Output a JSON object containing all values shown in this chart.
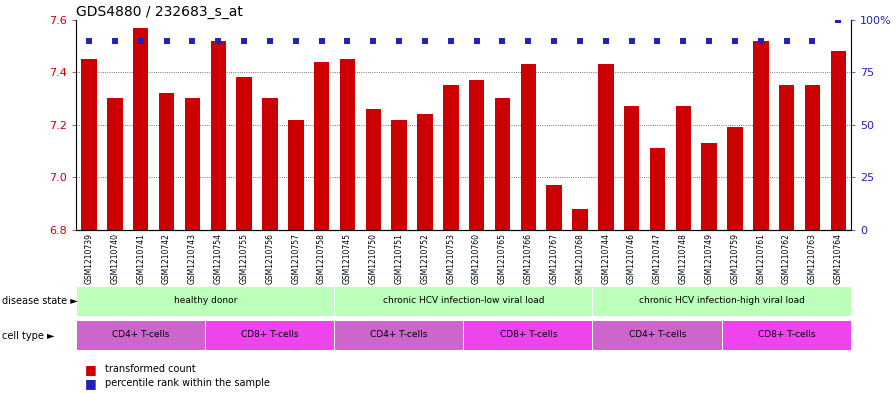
{
  "title": "GDS4880 / 232683_s_at",
  "samples": [
    "GSM1210739",
    "GSM1210740",
    "GSM1210741",
    "GSM1210742",
    "GSM1210743",
    "GSM1210754",
    "GSM1210755",
    "GSM1210756",
    "GSM1210757",
    "GSM1210758",
    "GSM1210745",
    "GSM1210750",
    "GSM1210751",
    "GSM1210752",
    "GSM1210753",
    "GSM1210760",
    "GSM1210765",
    "GSM1210766",
    "GSM1210767",
    "GSM1210768",
    "GSM1210744",
    "GSM1210746",
    "GSM1210747",
    "GSM1210748",
    "GSM1210749",
    "GSM1210759",
    "GSM1210761",
    "GSM1210762",
    "GSM1210763",
    "GSM1210764"
  ],
  "bar_values": [
    7.45,
    7.3,
    7.57,
    7.32,
    7.3,
    7.52,
    7.38,
    7.3,
    7.22,
    7.44,
    7.45,
    7.26,
    7.22,
    7.24,
    7.35,
    7.37,
    7.3,
    7.43,
    6.97,
    6.88,
    7.43,
    7.27,
    7.11,
    7.27,
    7.13,
    7.19,
    7.52,
    7.35,
    7.35,
    7.48
  ],
  "percentile_values": [
    90,
    90,
    90,
    90,
    90,
    90,
    90,
    90,
    90,
    90,
    90,
    90,
    90,
    90,
    90,
    90,
    90,
    90,
    90,
    90,
    90,
    90,
    90,
    90,
    90,
    90,
    90,
    90,
    90,
    100
  ],
  "bar_color": "#cc0000",
  "percentile_color": "#2222bb",
  "ymin": 6.8,
  "ymax": 7.6,
  "yticks_left": [
    6.8,
    7.0,
    7.2,
    7.4,
    7.6
  ],
  "yticks_right": [
    0,
    25,
    50,
    75,
    100
  ],
  "disease_states": [
    {
      "label": "healthy donor",
      "start": 0,
      "end": 9
    },
    {
      "label": "chronic HCV infection-low viral load",
      "start": 10,
      "end": 19
    },
    {
      "label": "chronic HCV infection-high viral load",
      "start": 20,
      "end": 29
    }
  ],
  "ds_bg_color": "#33cc33",
  "ds_inner_color": "#bbffbb",
  "cell_types": [
    {
      "label": "CD4+ T-cells",
      "start": 0,
      "end": 4,
      "color": "#cc66cc"
    },
    {
      "label": "CD8+ T-cells",
      "start": 5,
      "end": 9,
      "color": "#ee44ee"
    },
    {
      "label": "CD4+ T-cells",
      "start": 10,
      "end": 14,
      "color": "#cc66cc"
    },
    {
      "label": "CD8+ T-cells",
      "start": 15,
      "end": 19,
      "color": "#ee44ee"
    },
    {
      "label": "CD4+ T-cells",
      "start": 20,
      "end": 24,
      "color": "#cc66cc"
    },
    {
      "label": "CD8+ T-cells",
      "start": 25,
      "end": 29,
      "color": "#ee44ee"
    }
  ],
  "ct_bg_color": "#cc33cc",
  "xlbl_bg": "#c8c8c8",
  "bg_color": "#ffffff",
  "bar_width": 0.6,
  "marker_size": 5,
  "grid_linestyle": "dotted",
  "grid_color": "#444444",
  "title_fontsize": 10,
  "tick_fontsize": 8,
  "row_fontsize": 7,
  "sample_fontsize": 5.5,
  "annotation_fontsize": 6.5,
  "legend_fontsize": 7
}
